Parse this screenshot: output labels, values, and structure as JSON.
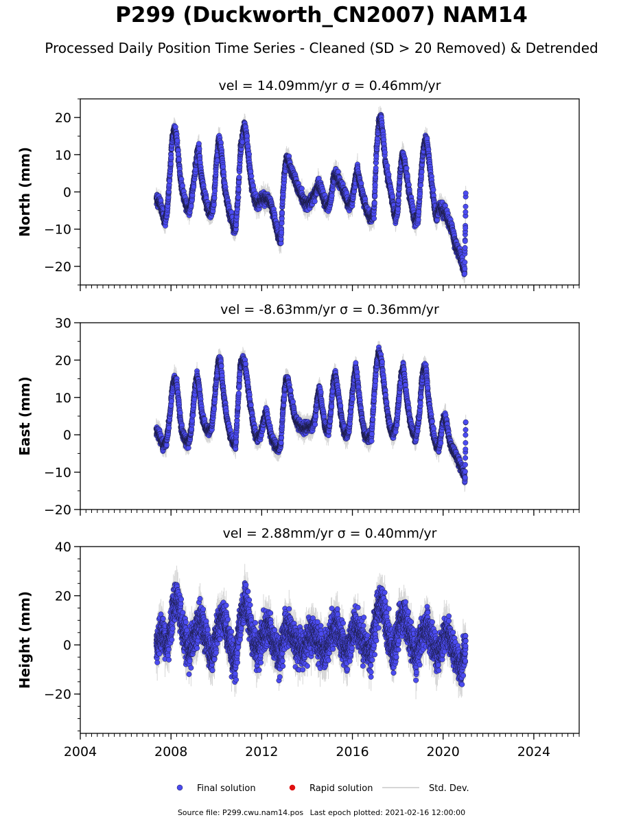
{
  "title": "P299 (Duckworth_CN2007) NAM14",
  "subtitle": "Processed Daily Position Time Series - Cleaned (SD > 20 Removed) & Detrended",
  "footer": {
    "source": "Source file: P299.cwu.nam14.pos",
    "last_epoch": "Last epoch plotted: 2021-02-16 12:00:00"
  },
  "legend": {
    "items": [
      {
        "label": "Final solution",
        "kind": "marker",
        "color": "#4b4bf0"
      },
      {
        "label": "Rapid solution",
        "kind": "marker",
        "color": "#e01010"
      },
      {
        "label": "Std. Dev.",
        "kind": "line",
        "color": "#c8c8c8"
      }
    ]
  },
  "colors": {
    "final": "#4b4bf0",
    "final_edge": "#1a1a40",
    "rapid": "#e01010",
    "stddev": "#b4b4b4"
  },
  "chart_data": [
    {
      "type": "scatter",
      "component": "North",
      "panel_title": "vel = 14.09mm/yr   σ = 0.46mm/yr",
      "ylabel": "North (mm)",
      "xlim": [
        2004,
        2026
      ],
      "ylim": [
        -25,
        25
      ],
      "xticks": [
        2004,
        2008,
        2012,
        2016,
        2020,
        2024
      ],
      "yticks": [
        -20,
        -10,
        0,
        10,
        20
      ],
      "x_range": [
        2007.35,
        2021.0
      ],
      "keypoints": [
        [
          2007.35,
          -2
        ],
        [
          2007.5,
          -3
        ],
        [
          2007.65,
          -6
        ],
        [
          2007.75,
          -8
        ],
        [
          2007.85,
          -4
        ],
        [
          2007.95,
          5
        ],
        [
          2008.05,
          14
        ],
        [
          2008.15,
          17
        ],
        [
          2008.25,
          15
        ],
        [
          2008.35,
          8
        ],
        [
          2008.45,
          2
        ],
        [
          2008.55,
          -1
        ],
        [
          2008.65,
          -3
        ],
        [
          2008.75,
          -5
        ],
        [
          2008.85,
          -4
        ],
        [
          2008.95,
          0
        ],
        [
          2009.05,
          5
        ],
        [
          2009.15,
          10
        ],
        [
          2009.22,
          12
        ],
        [
          2009.32,
          5
        ],
        [
          2009.45,
          0
        ],
        [
          2009.6,
          -4
        ],
        [
          2009.75,
          -6
        ],
        [
          2009.9,
          -2
        ],
        [
          2010.0,
          8
        ],
        [
          2010.1,
          14
        ],
        [
          2010.2,
          12
        ],
        [
          2010.3,
          5
        ],
        [
          2010.45,
          -2
        ],
        [
          2010.6,
          -6
        ],
        [
          2010.75,
          -9
        ],
        [
          2010.85,
          -10
        ],
        [
          2010.95,
          -2
        ],
        [
          2011.05,
          10
        ],
        [
          2011.15,
          15
        ],
        [
          2011.25,
          18
        ],
        [
          2011.35,
          14
        ],
        [
          2011.45,
          8
        ],
        [
          2011.55,
          2
        ],
        [
          2011.7,
          -2
        ],
        [
          2011.85,
          -3
        ],
        [
          2012.0,
          -2
        ],
        [
          2012.15,
          -2
        ],
        [
          2012.3,
          -2
        ],
        [
          2012.45,
          -4
        ],
        [
          2012.6,
          -8
        ],
        [
          2012.75,
          -12
        ],
        [
          2012.85,
          -13
        ],
        [
          2012.92,
          -2
        ],
        [
          2013.0,
          5
        ],
        [
          2013.1,
          9
        ],
        [
          2013.2,
          8
        ],
        [
          2013.35,
          5
        ],
        [
          2013.55,
          2
        ],
        [
          2013.75,
          -1
        ],
        [
          2013.9,
          -3
        ],
        [
          2014.05,
          -3
        ],
        [
          2014.25,
          -2
        ],
        [
          2014.4,
          0
        ],
        [
          2014.5,
          2
        ],
        [
          2014.6,
          1
        ],
        [
          2014.75,
          -2
        ],
        [
          2014.9,
          -4
        ],
        [
          2015.05,
          -2
        ],
        [
          2015.15,
          3
        ],
        [
          2015.25,
          5
        ],
        [
          2015.4,
          3
        ],
        [
          2015.55,
          1
        ],
        [
          2015.7,
          -1
        ],
        [
          2015.85,
          -4
        ],
        [
          2016.0,
          -2
        ],
        [
          2016.12,
          3
        ],
        [
          2016.22,
          6
        ],
        [
          2016.35,
          2
        ],
        [
          2016.5,
          -2
        ],
        [
          2016.65,
          -5
        ],
        [
          2016.8,
          -7
        ],
        [
          2016.95,
          -6
        ],
        [
          2017.05,
          10
        ],
        [
          2017.15,
          18
        ],
        [
          2017.25,
          20
        ],
        [
          2017.35,
          15
        ],
        [
          2017.45,
          8
        ],
        [
          2017.6,
          3
        ],
        [
          2017.75,
          -2
        ],
        [
          2017.9,
          -7
        ],
        [
          2018.0,
          -5
        ],
        [
          2018.1,
          5
        ],
        [
          2018.2,
          10
        ],
        [
          2018.3,
          8
        ],
        [
          2018.45,
          2
        ],
        [
          2018.6,
          -3
        ],
        [
          2018.75,
          -8
        ],
        [
          2018.9,
          -7
        ],
        [
          2019.0,
          2
        ],
        [
          2019.1,
          10
        ],
        [
          2019.2,
          14
        ],
        [
          2019.3,
          13
        ],
        [
          2019.4,
          8
        ],
        [
          2019.5,
          2
        ],
        [
          2019.6,
          -3
        ],
        [
          2019.7,
          -7
        ],
        [
          2019.8,
          -5
        ],
        [
          2019.9,
          -4
        ],
        [
          2020.0,
          -6
        ],
        [
          2020.1,
          -5
        ],
        [
          2020.25,
          -8
        ],
        [
          2020.4,
          -10
        ],
        [
          2020.5,
          -13
        ],
        [
          2020.6,
          -15
        ],
        [
          2020.7,
          -16
        ],
        [
          2020.8,
          -18
        ],
        [
          2020.9,
          -20
        ],
        [
          2020.95,
          -22
        ],
        [
          2021.0,
          -1
        ]
      ],
      "noise": 1.3,
      "sd_range": [
        1.0,
        3.0
      ]
    },
    {
      "type": "scatter",
      "component": "East",
      "panel_title": "vel = -8.63mm/yr   σ = 0.36mm/yr",
      "ylabel": "East (mm)",
      "xlim": [
        2004,
        2026
      ],
      "ylim": [
        -20,
        30
      ],
      "xticks": [
        2004,
        2008,
        2012,
        2016,
        2020,
        2024
      ],
      "yticks": [
        -20,
        -10,
        0,
        10,
        20,
        30
      ],
      "x_range": [
        2007.35,
        2021.0
      ],
      "keypoints": [
        [
          2007.35,
          1
        ],
        [
          2007.5,
          0
        ],
        [
          2007.65,
          -3
        ],
        [
          2007.8,
          -2
        ],
        [
          2007.95,
          5
        ],
        [
          2008.05,
          12
        ],
        [
          2008.15,
          15
        ],
        [
          2008.25,
          14
        ],
        [
          2008.35,
          8
        ],
        [
          2008.45,
          2
        ],
        [
          2008.6,
          -1
        ],
        [
          2008.75,
          -2
        ],
        [
          2008.85,
          -1
        ],
        [
          2008.95,
          5
        ],
        [
          2009.05,
          12
        ],
        [
          2009.15,
          16
        ],
        [
          2009.25,
          12
        ],
        [
          2009.35,
          6
        ],
        [
          2009.5,
          2
        ],
        [
          2009.65,
          1
        ],
        [
          2009.8,
          2
        ],
        [
          2009.9,
          8
        ],
        [
          2010.0,
          15
        ],
        [
          2010.1,
          20
        ],
        [
          2010.2,
          19
        ],
        [
          2010.3,
          12
        ],
        [
          2010.45,
          5
        ],
        [
          2010.6,
          0
        ],
        [
          2010.75,
          -2
        ],
        [
          2010.85,
          -3
        ],
        [
          2010.95,
          8
        ],
        [
          2011.05,
          18
        ],
        [
          2011.15,
          20
        ],
        [
          2011.25,
          19
        ],
        [
          2011.35,
          15
        ],
        [
          2011.5,
          8
        ],
        [
          2011.65,
          2
        ],
        [
          2011.8,
          -1
        ],
        [
          2011.95,
          0
        ],
        [
          2012.1,
          4
        ],
        [
          2012.2,
          6
        ],
        [
          2012.3,
          3
        ],
        [
          2012.45,
          -1
        ],
        [
          2012.6,
          -3
        ],
        [
          2012.75,
          -4
        ],
        [
          2012.85,
          -2
        ],
        [
          2012.95,
          8
        ],
        [
          2013.05,
          14
        ],
        [
          2013.15,
          15
        ],
        [
          2013.3,
          10
        ],
        [
          2013.45,
          5
        ],
        [
          2013.6,
          3
        ],
        [
          2013.8,
          2
        ],
        [
          2014.0,
          2
        ],
        [
          2014.2,
          2
        ],
        [
          2014.35,
          4
        ],
        [
          2014.45,
          10
        ],
        [
          2014.55,
          12
        ],
        [
          2014.65,
          8
        ],
        [
          2014.8,
          2
        ],
        [
          2014.95,
          1
        ],
        [
          2015.05,
          6
        ],
        [
          2015.15,
          14
        ],
        [
          2015.25,
          16
        ],
        [
          2015.4,
          10
        ],
        [
          2015.55,
          3
        ],
        [
          2015.7,
          0
        ],
        [
          2015.85,
          1
        ],
        [
          2015.95,
          8
        ],
        [
          2016.05,
          14
        ],
        [
          2016.15,
          18
        ],
        [
          2016.25,
          13
        ],
        [
          2016.4,
          5
        ],
        [
          2016.55,
          0
        ],
        [
          2016.7,
          -1
        ],
        [
          2016.85,
          0
        ],
        [
          2016.95,
          10
        ],
        [
          2017.05,
          18
        ],
        [
          2017.15,
          22
        ],
        [
          2017.25,
          21
        ],
        [
          2017.35,
          16
        ],
        [
          2017.5,
          8
        ],
        [
          2017.65,
          2
        ],
        [
          2017.8,
          0
        ],
        [
          2017.95,
          3
        ],
        [
          2018.05,
          10
        ],
        [
          2018.15,
          16
        ],
        [
          2018.25,
          18
        ],
        [
          2018.35,
          12
        ],
        [
          2018.5,
          5
        ],
        [
          2018.65,
          1
        ],
        [
          2018.8,
          -1
        ],
        [
          2018.95,
          5
        ],
        [
          2019.05,
          14
        ],
        [
          2019.15,
          18
        ],
        [
          2019.25,
          17
        ],
        [
          2019.35,
          10
        ],
        [
          2019.5,
          3
        ],
        [
          2019.65,
          -2
        ],
        [
          2019.8,
          -4
        ],
        [
          2019.95,
          2
        ],
        [
          2020.05,
          5
        ],
        [
          2020.15,
          3
        ],
        [
          2020.3,
          -2
        ],
        [
          2020.45,
          -4
        ],
        [
          2020.6,
          -6
        ],
        [
          2020.75,
          -8
        ],
        [
          2020.9,
          -10
        ],
        [
          2020.97,
          -12
        ],
        [
          2021.0,
          5
        ]
      ],
      "noise": 1.1,
      "sd_range": [
        1.0,
        3.0
      ]
    },
    {
      "type": "scatter",
      "component": "Height",
      "panel_title": "vel = 2.88mm/yr   σ = 0.40mm/yr",
      "ylabel": "Height (mm)",
      "xlim": [
        2004,
        2026
      ],
      "ylim": [
        -36,
        40
      ],
      "xticks": [
        2004,
        2008,
        2012,
        2016,
        2020,
        2024
      ],
      "yticks": [
        -20,
        0,
        20,
        40
      ],
      "x_range": [
        2007.35,
        2021.0
      ],
      "keypoints": [
        [
          2007.35,
          0
        ],
        [
          2007.6,
          5
        ],
        [
          2007.85,
          0
        ],
        [
          2008.1,
          15
        ],
        [
          2008.3,
          18
        ],
        [
          2008.55,
          5
        ],
        [
          2008.8,
          -3
        ],
        [
          2009.1,
          5
        ],
        [
          2009.3,
          10
        ],
        [
          2009.55,
          3
        ],
        [
          2009.8,
          -5
        ],
        [
          2010.1,
          8
        ],
        [
          2010.3,
          12
        ],
        [
          2010.55,
          2
        ],
        [
          2010.8,
          -8
        ],
        [
          2011.1,
          12
        ],
        [
          2011.3,
          18
        ],
        [
          2011.55,
          5
        ],
        [
          2011.8,
          -3
        ],
        [
          2012.1,
          5
        ],
        [
          2012.3,
          8
        ],
        [
          2012.55,
          0
        ],
        [
          2012.8,
          -5
        ],
        [
          2013.1,
          8
        ],
        [
          2013.3,
          5
        ],
        [
          2013.55,
          0
        ],
        [
          2013.8,
          -3
        ],
        [
          2014.1,
          3
        ],
        [
          2014.3,
          5
        ],
        [
          2014.55,
          0
        ],
        [
          2014.8,
          -3
        ],
        [
          2015.1,
          5
        ],
        [
          2015.3,
          8
        ],
        [
          2015.55,
          2
        ],
        [
          2015.8,
          -3
        ],
        [
          2016.1,
          8
        ],
        [
          2016.3,
          5
        ],
        [
          2016.55,
          0
        ],
        [
          2016.8,
          -5
        ],
        [
          2017.1,
          15
        ],
        [
          2017.3,
          18
        ],
        [
          2017.55,
          5
        ],
        [
          2017.8,
          -5
        ],
        [
          2018.1,
          10
        ],
        [
          2018.3,
          12
        ],
        [
          2018.55,
          3
        ],
        [
          2018.8,
          -5
        ],
        [
          2019.1,
          5
        ],
        [
          2019.3,
          8
        ],
        [
          2019.55,
          0
        ],
        [
          2019.8,
          -5
        ],
        [
          2020.1,
          5
        ],
        [
          2020.3,
          3
        ],
        [
          2020.55,
          -5
        ],
        [
          2020.8,
          -10
        ],
        [
          2021.0,
          0
        ]
      ],
      "noise": 6.0,
      "sd_range": [
        3.0,
        8.0
      ]
    }
  ]
}
